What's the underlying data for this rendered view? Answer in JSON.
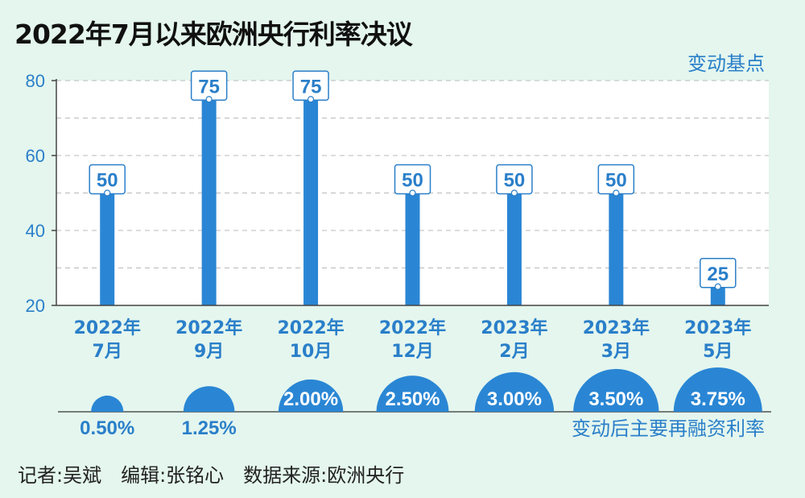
{
  "title": "2022年7月以来欧洲央行利率决议",
  "unit_label": "变动基点",
  "rate_label": "变动后主要再融资利率",
  "credits": "记者:吴斌　编辑:张铭心　数据来源:欧洲央行",
  "colors": {
    "background": "#e4f6ee",
    "plot": "#ffffff",
    "bar": "#2a86d4",
    "text_blue": "#2a7fc9"
  },
  "chart_data": {
    "type": "bar",
    "title": "2022年7月以来欧洲央行利率决议",
    "categories": [
      "2022年\n7月",
      "2022年\n9月",
      "2022年\n10月",
      "2022年\n12月",
      "2023年\n2月",
      "2023年\n3月",
      "2023年\n5月"
    ],
    "series": [
      {
        "name": "变动基点",
        "values": [
          50,
          75,
          75,
          50,
          50,
          50,
          25
        ]
      }
    ],
    "secondary": {
      "name": "变动后主要再融资利率",
      "labels": [
        "0.50%",
        "1.25%",
        "2.00%",
        "2.50%",
        "3.00%",
        "3.50%",
        "3.75%"
      ],
      "values": [
        0.5,
        1.25,
        2.0,
        2.5,
        3.0,
        3.5,
        3.75
      ]
    },
    "ylim": [
      20,
      80
    ],
    "yticks": [
      20,
      40,
      60,
      80
    ],
    "ylabel": "变动基点",
    "grid": true
  }
}
